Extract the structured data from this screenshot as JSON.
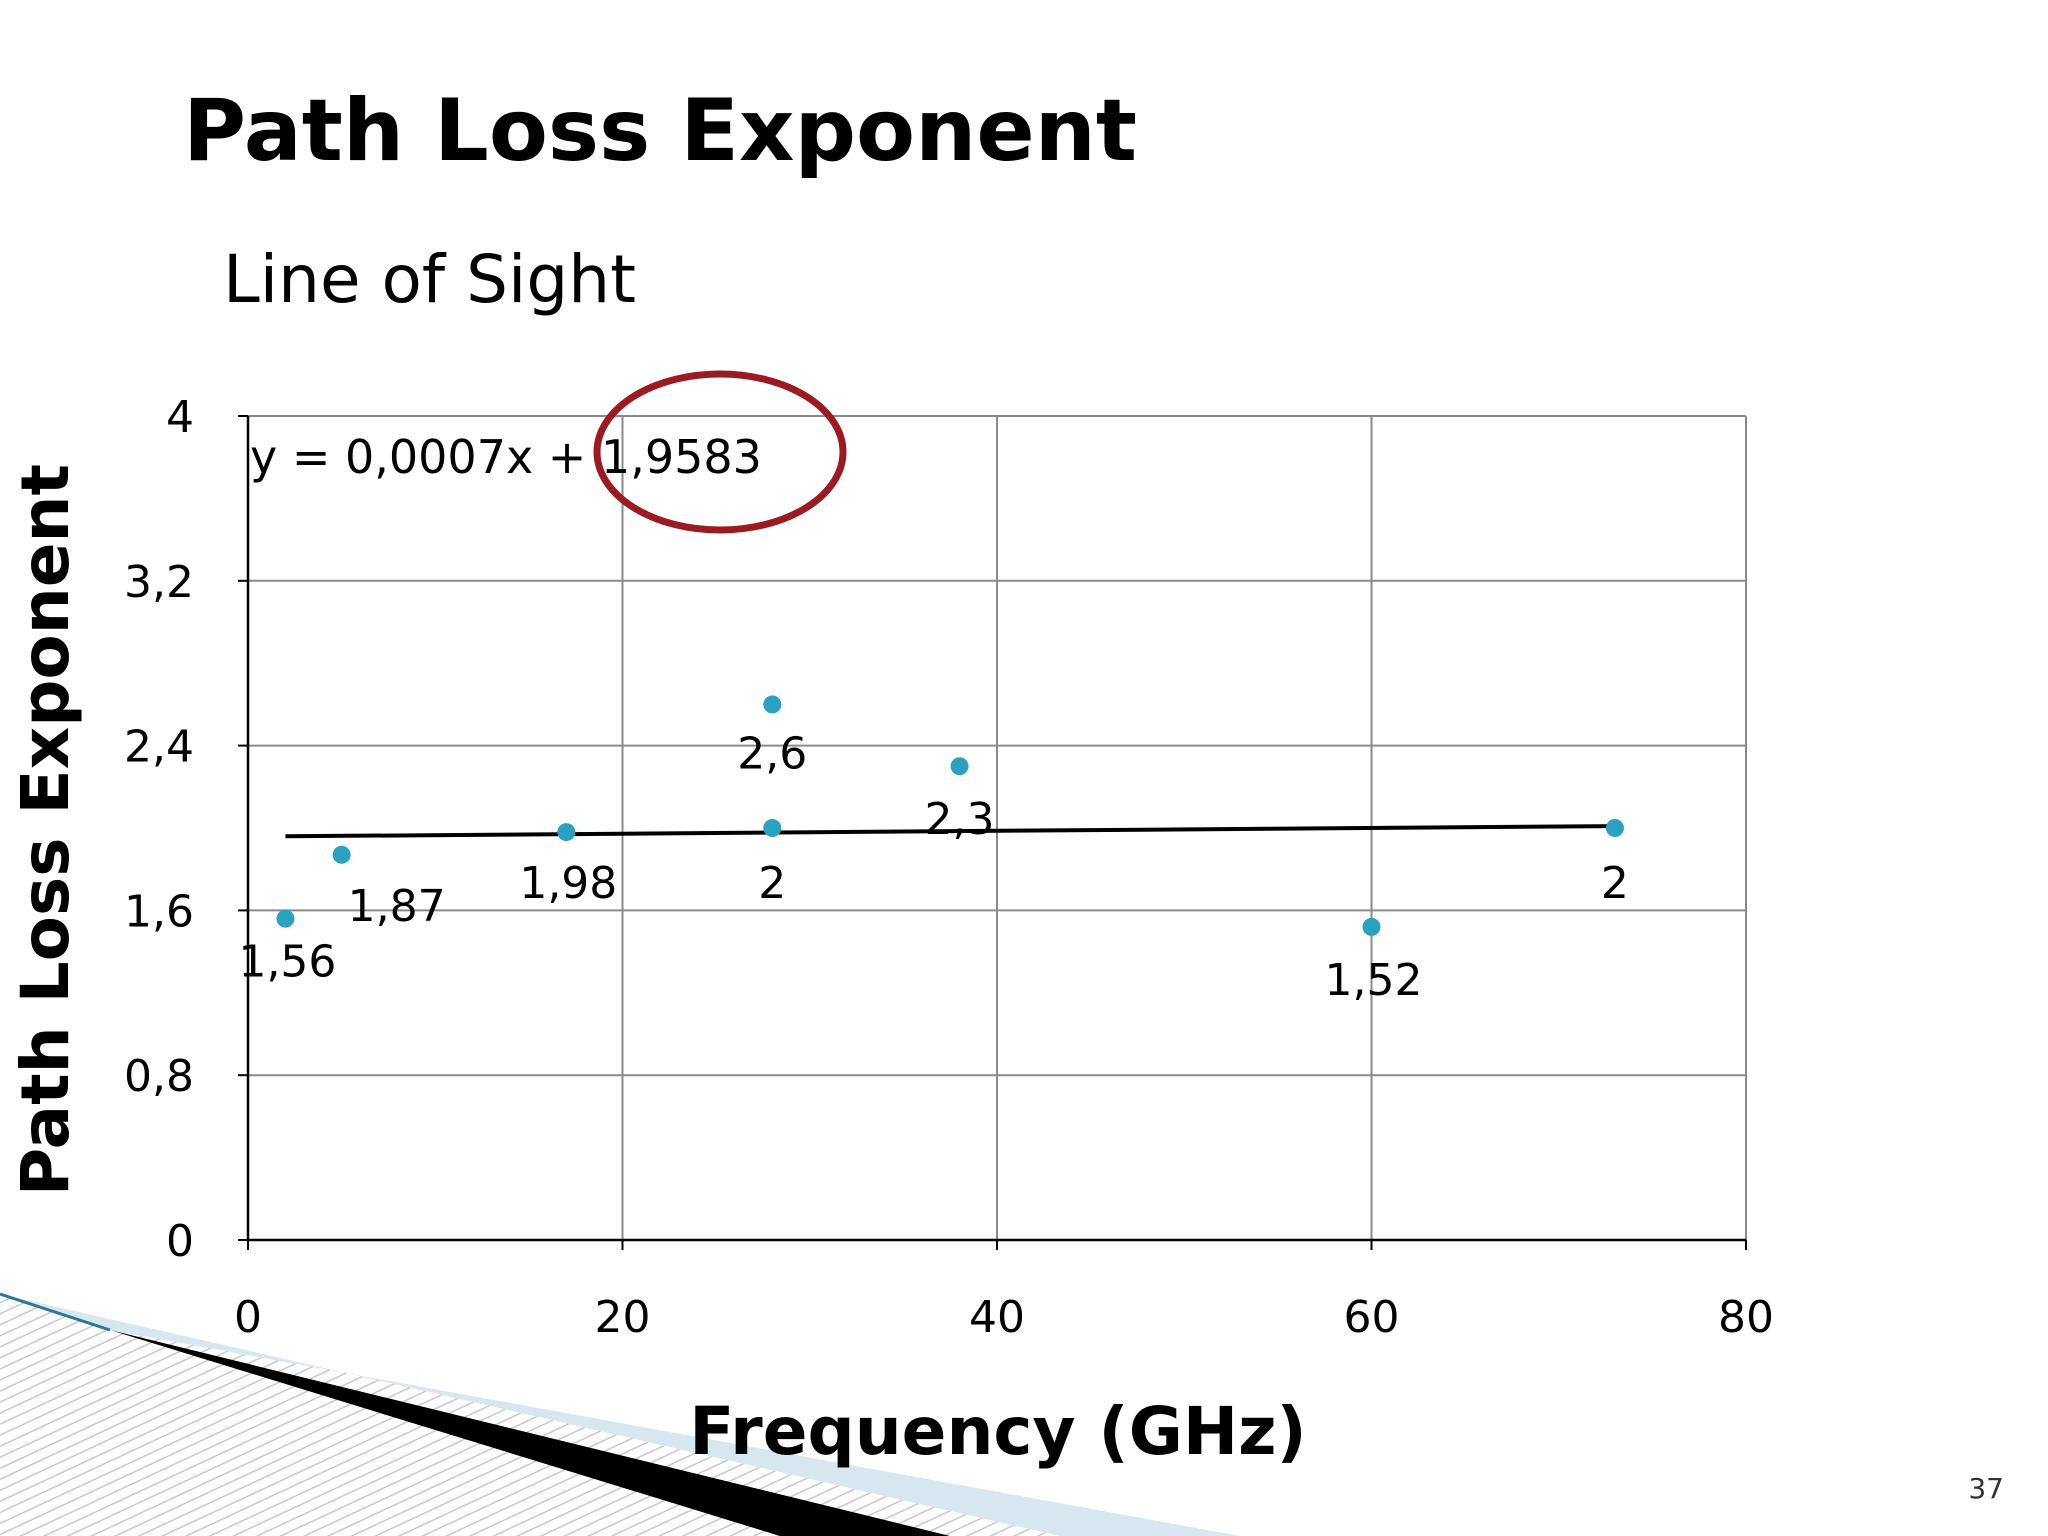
{
  "slide": {
    "title": "Path Loss Exponent",
    "subtitle": "Line of Sight",
    "page_number": "37"
  },
  "chart_data": {
    "type": "scatter",
    "xlabel": "Frequency (GHz)",
    "ylabel": "Path Loss Exponent",
    "xlim": [
      0,
      80
    ],
    "ylim": [
      0,
      4
    ],
    "x_ticks": [
      0,
      20,
      40,
      60,
      80
    ],
    "x_tick_labels": [
      "0",
      "20",
      "40",
      "60",
      "80"
    ],
    "y_ticks": [
      0,
      0.8,
      1.6,
      2.4,
      3.2,
      4
    ],
    "y_tick_labels": [
      "0",
      "0,8",
      "1,6",
      "2,4",
      "3,2",
      "4"
    ],
    "grid": true,
    "point_color": "#2aa1c0",
    "points": [
      {
        "x": 2,
        "y": 1.56,
        "label": "1,56"
      },
      {
        "x": 5,
        "y": 1.87,
        "label": "1,87"
      },
      {
        "x": 17,
        "y": 1.98,
        "label": "1,98"
      },
      {
        "x": 28,
        "y": 2.6,
        "label": "2,6"
      },
      {
        "x": 28,
        "y": 2.0,
        "label": "2"
      },
      {
        "x": 38,
        "y": 2.3,
        "label": "2,3"
      },
      {
        "x": 60,
        "y": 1.52,
        "label": "1,52"
      },
      {
        "x": 73,
        "y": 2.0,
        "label": "2"
      }
    ],
    "trendline": {
      "slope": 0.0007,
      "intercept": 1.9583,
      "x_range": [
        2,
        73
      ],
      "equation": "y = 0,0007x + 1,9583"
    },
    "annotation": {
      "type": "ellipse",
      "highlights": "1,9583",
      "color": "#9b1b20"
    }
  }
}
